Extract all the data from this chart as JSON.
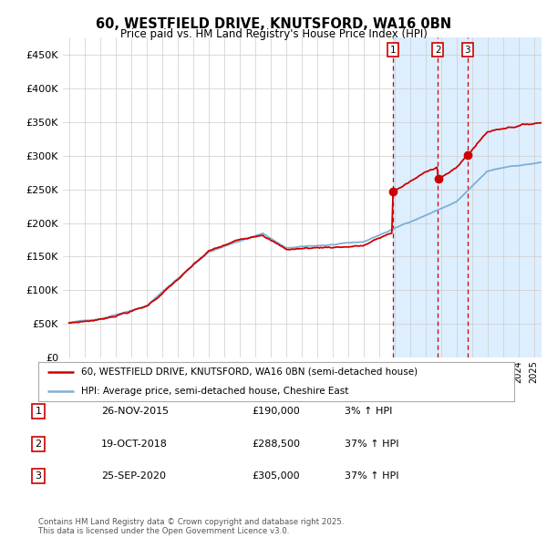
{
  "title_line1": "60, WESTFIELD DRIVE, KNUTSFORD, WA16 0BN",
  "title_line2": "Price paid vs. HM Land Registry's House Price Index (HPI)",
  "ylim": [
    0,
    475000
  ],
  "yticks": [
    0,
    50000,
    100000,
    150000,
    200000,
    250000,
    300000,
    350000,
    400000,
    450000
  ],
  "ytick_labels": [
    "£0",
    "£50K",
    "£100K",
    "£150K",
    "£200K",
    "£250K",
    "£300K",
    "£350K",
    "£400K",
    "£450K"
  ],
  "xlim_start": 1994.6,
  "xlim_end": 2025.5,
  "sale_dates": [
    2015.9,
    2018.8,
    2020.72
  ],
  "sale_labels": [
    "1",
    "2",
    "3"
  ],
  "sale_prices": [
    190000,
    288500,
    305000
  ],
  "sale_text": [
    "26-NOV-2015",
    "19-OCT-2018",
    "25-SEP-2020"
  ],
  "sale_pct": [
    "3% ↑ HPI",
    "37% ↑ HPI",
    "37% ↑ HPI"
  ],
  "sale_amounts": [
    "£190,000",
    "£288,500",
    "£305,000"
  ],
  "legend_line1": "60, WESTFIELD DRIVE, KNUTSFORD, WA16 0BN (semi-detached house)",
  "legend_line2": "HPI: Average price, semi-detached house, Cheshire East",
  "footer": "Contains HM Land Registry data © Crown copyright and database right 2025.\nThis data is licensed under the Open Government Licence v3.0.",
  "red_color": "#cc0000",
  "blue_color": "#7bafd4",
  "blue_fill": "#ddeeff",
  "bg_color": "#ffffff",
  "grid_color": "#cccccc",
  "dashed_color": "#cc0000"
}
